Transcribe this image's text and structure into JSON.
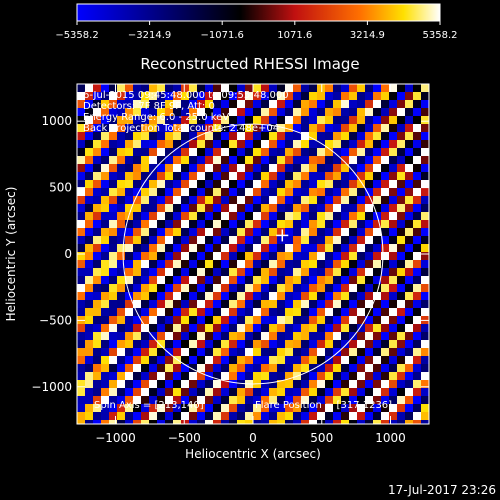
{
  "chart_data": {
    "type": "heatmap",
    "title": "Reconstructed RHESSI Image",
    "xlabel": "Heliocentric X (arcsec)",
    "ylabel": "Heliocentric Y (arcsec)",
    "xlim": [
      -1280,
      1280
    ],
    "ylim": [
      -1280,
      1280
    ],
    "x_ticks": [
      -1000,
      -500,
      0,
      500,
      1000
    ],
    "y_ticks": [
      -1000,
      -500,
      0,
      500,
      1000
    ],
    "x_tick_labels": [
      "−1000",
      "−500",
      "0",
      "500",
      "1000"
    ],
    "y_tick_labels": [
      "−1000",
      "−500",
      "0",
      "500",
      "1000"
    ],
    "colorbar": {
      "min": -5358.2,
      "max": 5358.2,
      "ticks": [
        -5358.2,
        -3214.9,
        -1071.6,
        1071.6,
        3214.9,
        5358.2
      ],
      "tick_labels": [
        "−5358.2",
        "−3214.9",
        "−1071.6",
        "1071.6",
        "3214.9",
        "5358.2"
      ]
    },
    "annotations": [
      "6-Jul-2015 09:45:48.000 to 09:55:48.000",
      "Detectors: 7F 8F 9F, Att: 0",
      "Energy Range: 6.0 - 25.0 keV",
      "Back Projection  Total counts: 2.48e+04"
    ],
    "spin_axis_text": "Spin Axis = [213,140]",
    "flare_position_text": "Flare Position = [317,1236]",
    "spin_axis": [
      213,
      140
    ],
    "solar_disk_radius_arcsec": 945,
    "stripe_period_arcsec": 172,
    "stripe_angle_deg": 45
  },
  "footer": {
    "timestamp": "17-Jul-2017 23:26"
  }
}
